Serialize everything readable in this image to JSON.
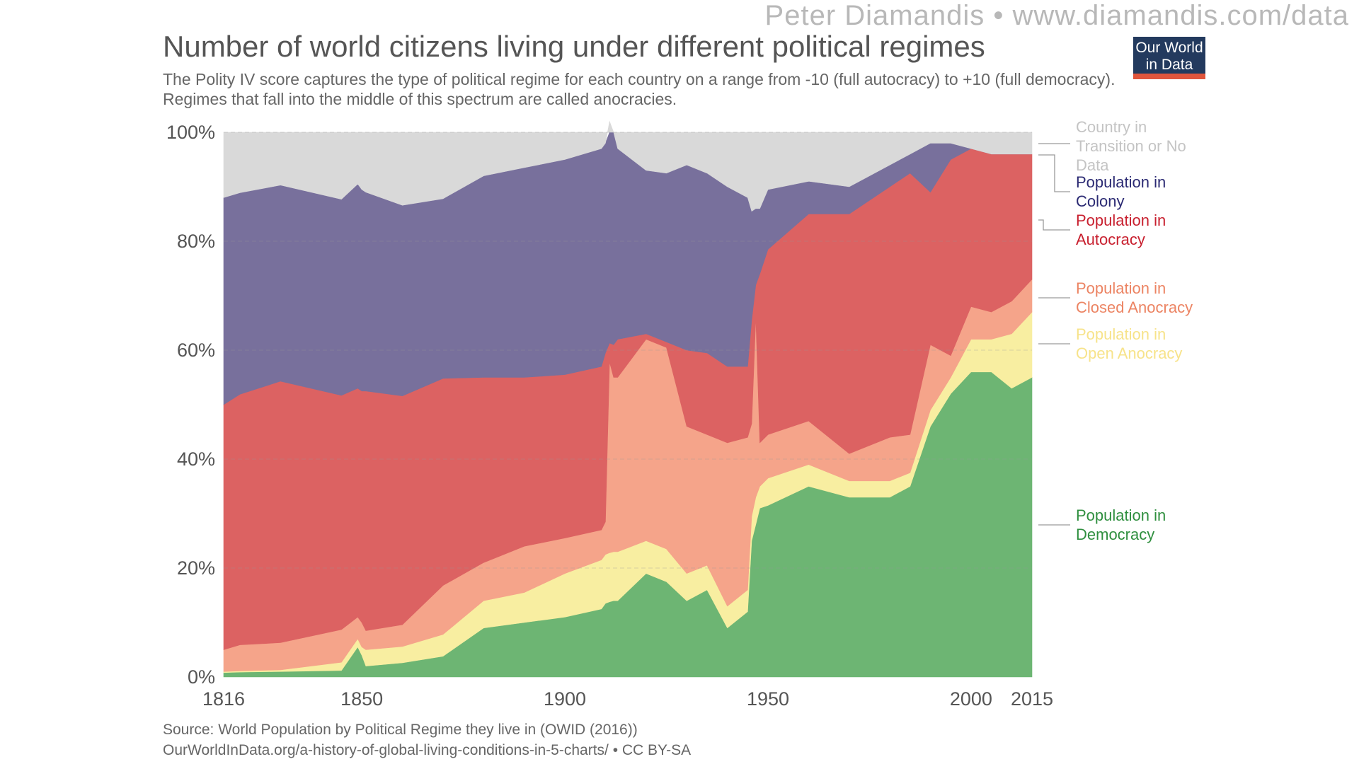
{
  "header": {
    "watermark": "Peter Diamandis  •  www.diamandis.com/data",
    "logo_line1": "Our World",
    "logo_line2": "in Data"
  },
  "chart_data": {
    "type": "area",
    "stacked": true,
    "title": "Number of world citizens living under different political regimes",
    "subtitle": "The Polity IV score captures the type of political regime for each country on a range from -10 (full autocracy) to +10 (full democracy). Regimes that fall into the middle of this spectrum are called anocracies.",
    "xlabel": "",
    "ylabel": "",
    "xlim": [
      1816,
      2015
    ],
    "ylim": [
      0,
      100
    ],
    "x_ticks": [
      1816,
      1850,
      1900,
      1950,
      2000,
      2015
    ],
    "y_ticks": [
      "0%",
      "20%",
      "40%",
      "60%",
      "80%",
      "100%"
    ],
    "y_tick_values": [
      0,
      20,
      40,
      60,
      80,
      100
    ],
    "grid": true,
    "legend_placement": "right",
    "x": [
      1816,
      1820,
      1830,
      1845,
      1849,
      1850,
      1851,
      1860,
      1870,
      1880,
      1890,
      1900,
      1909,
      1910,
      1911,
      1912,
      1913,
      1920,
      1925,
      1930,
      1935,
      1940,
      1945,
      1946,
      1947,
      1948,
      1950,
      1960,
      1970,
      1980,
      1985,
      1990,
      1995,
      2000,
      2005,
      2010,
      2015
    ],
    "series": [
      {
        "name": "Population in Democracy",
        "color": "#6db573",
        "values": [
          0.8,
          0.9,
          1.0,
          1.2,
          5.5,
          4.0,
          2.0,
          2.6,
          3.8,
          9.0,
          10.0,
          11.0,
          12.5,
          13.5,
          13.8,
          14.0,
          14.0,
          19.0,
          17.5,
          14.0,
          16.0,
          9.0,
          12.0,
          25.0,
          28.0,
          31.0,
          31.5,
          35.0,
          33.0,
          33.0,
          35.0,
          46.0,
          52.0,
          56.0,
          56.0,
          53.0,
          55.0
        ]
      },
      {
        "name": "Population in Open Anocracy",
        "color": "#f8eea1",
        "values": [
          0.2,
          0.2,
          0.3,
          1.5,
          1.5,
          1.5,
          3.0,
          3.0,
          4.0,
          5.0,
          5.5,
          8.0,
          9.0,
          9.0,
          9.0,
          9.0,
          9.0,
          6.0,
          6.0,
          5.0,
          4.5,
          4.0,
          4.0,
          4.5,
          5.0,
          4.0,
          5.0,
          4.0,
          3.0,
          3.0,
          2.5,
          3.0,
          3.0,
          6.0,
          6.0,
          10.0,
          12.0
        ]
      },
      {
        "name": "Population in Closed Anocracy",
        "color": "#f5a48a",
        "values": [
          4.0,
          4.8,
          5.0,
          6.0,
          4.0,
          4.5,
          3.5,
          4.0,
          9.0,
          7.0,
          8.5,
          6.5,
          5.5,
          6.0,
          35.0,
          32.0,
          32.0,
          37.0,
          37.0,
          27.0,
          24.0,
          30.0,
          28.0,
          17.0,
          33.0,
          8.0,
          8.0,
          8.0,
          5.0,
          8.0,
          7.0,
          12.0,
          4.0,
          6.0,
          5.0,
          6.0,
          6.0
        ]
      },
      {
        "name": "Population in Autocracy",
        "color": "#dc6262",
        "values": [
          45.0,
          46.0,
          48.0,
          43.0,
          42.0,
          42.5,
          44.0,
          42.0,
          38.0,
          34.0,
          31.0,
          30.0,
          30.0,
          31.0,
          3.5,
          6.0,
          7.0,
          1.0,
          1.0,
          14.0,
          15.0,
          14.0,
          13.0,
          19.0,
          6.0,
          31.0,
          34.0,
          38.0,
          44.0,
          46.0,
          48.0,
          28.0,
          36.0,
          29.0,
          29.0,
          27.0,
          23.0
        ]
      },
      {
        "name": "Population in Colony",
        "color": "#78709c",
        "values": [
          38.0,
          37.0,
          36.0,
          36.0,
          37.5,
          37.0,
          36.5,
          35.0,
          33.0,
          37.0,
          38.5,
          39.5,
          40.0,
          38.5,
          40.7,
          39.0,
          35.0,
          30.0,
          31.0,
          34.0,
          33.0,
          33.0,
          31.0,
          20.0,
          14.0,
          12.0,
          11.0,
          6.0,
          5.0,
          4.0,
          3.5,
          9.0,
          3.0,
          0.0,
          0.0,
          0.0,
          0.0
        ]
      },
      {
        "name": "Country in Transition or No Data",
        "color": "#d9d9d9",
        "values": [
          12.0,
          11.1,
          9.7,
          12.3,
          9.5,
          10.5,
          11.0,
          13.4,
          12.2,
          8.0,
          6.5,
          5.0,
          3.0,
          2.0,
          1.0,
          0.0,
          3.0,
          7.0,
          7.5,
          6.0,
          7.5,
          10.0,
          12.0,
          14.5,
          14.0,
          14.0,
          10.5,
          9.0,
          10.0,
          6.0,
          4.0,
          2.0,
          2.0,
          3.0,
          4.0,
          4.0,
          4.0
        ]
      }
    ],
    "legend_entries": [
      {
        "label_lines": [
          "Country in",
          "Transition or No",
          "Data"
        ],
        "color": "#c4c4c4"
      },
      {
        "label_lines": [
          "Population in",
          "Colony"
        ],
        "color": "#2b2a73"
      },
      {
        "label_lines": [
          "Population in",
          "Autocracy"
        ],
        "color": "#c8202f"
      },
      {
        "label_lines": [
          "Population in",
          "Closed Anocracy"
        ],
        "color": "#ec8463"
      },
      {
        "label_lines": [
          "Population in",
          "Open Anocracy"
        ],
        "color": "#f7e38a"
      },
      {
        "label_lines": [
          "Population in",
          "Democracy"
        ],
        "color": "#2f8f3f"
      }
    ]
  },
  "footer": {
    "source_line1": "Source: World Population by Political Regime they live in (OWID (2016))",
    "source_line2": "OurWorldInData.org/a-history-of-global-living-conditions-in-5-charts/ • CC BY-SA"
  }
}
